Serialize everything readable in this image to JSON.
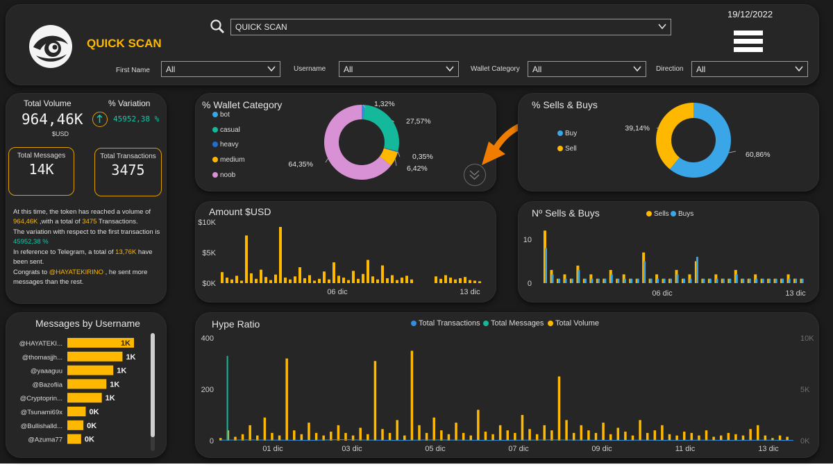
{
  "colors": {
    "accent": "#ffb800",
    "teal": "#14b89a",
    "blue": "#2f8fe0",
    "pink": "#d891d4",
    "orange_arrow": "#f07d00",
    "bg": "#1b1b1b",
    "panel": "#262626"
  },
  "header": {
    "app_title": "QUICK SCAN",
    "logo_icon": "eye-swirl-logo",
    "search_value": "QUICK SCAN",
    "date": "19/12/2022",
    "menu_icon": "hamburger-icon",
    "filters": [
      {
        "label": "First Name",
        "value": "All"
      },
      {
        "label": "Username",
        "value": "All"
      },
      {
        "label": "Wallet Category",
        "value": "All"
      },
      {
        "label": "Direction",
        "value": "All"
      }
    ]
  },
  "kpis": {
    "total_volume_label": "Total Volume",
    "total_volume_value": "964,46K",
    "total_volume_unit": "$USD",
    "variation_label": "% Variation",
    "variation_value": "45952,38 %",
    "total_messages_label": "Total Messages",
    "total_messages_value": "14K",
    "total_transactions_label": "Total Transactions",
    "total_transactions_value": "3475"
  },
  "summary": {
    "p1_a": "At this time, the token has reached a volume of ",
    "p1_b": "964,46K",
    "p1_c": " ,with a total of ",
    "p1_d": "3475",
    "p1_e": " Transactions.",
    "p2_a": "The variation with respect to the first transaction is ",
    "p2_b": "45952,38 %",
    "p3_a": "In reference to Telegram, a total of ",
    "p3_b": "13,76K",
    "p3_c": " have been sent.",
    "p4_a": "Congrats to ",
    "p4_b": "@HAYATEKIRINO",
    "p4_c": " , he sent more messages than the rest."
  },
  "chart_data": [
    {
      "id": "wallet_category",
      "type": "pie",
      "title": "% Wallet Category",
      "legend_position": "left",
      "labels": [
        "bot",
        "casual",
        "heavy",
        "medium",
        "noob"
      ],
      "values": [
        1.32,
        27.57,
        0.35,
        6.42,
        64.35
      ],
      "value_labels": [
        "1,32%",
        "27,57%",
        "0,35%",
        "6,42%",
        "64,35%"
      ],
      "colors": [
        "#2f8fe0",
        "#14b89a",
        "#1f6fd0",
        "#ffb800",
        "#d891d4"
      ]
    },
    {
      "id": "sells_buys_pct",
      "type": "pie",
      "title": "% Sells & Buys",
      "legend_position": "left",
      "labels": [
        "Buy",
        "Sell"
      ],
      "values": [
        60.86,
        39.14
      ],
      "value_labels": [
        "60,86%",
        "39,14%"
      ],
      "colors": [
        "#3aa6e8",
        "#ffb800"
      ]
    },
    {
      "id": "amount_usd",
      "type": "area",
      "title": "Amount $USD",
      "y_ticks": [
        "$10K",
        "$5K",
        "$0K"
      ],
      "ylim": [
        0,
        10000
      ],
      "x_ticks": [
        "06 dic",
        "13 dic"
      ],
      "series": [
        {
          "values": [
            1800,
            900,
            600,
            1200,
            400,
            7800,
            1600,
            700,
            2200,
            1000,
            500,
            1400,
            9200,
            900,
            600,
            1100,
            2600,
            800,
            1300,
            400,
            700,
            1900,
            600,
            3400,
            1200,
            900,
            500,
            2000,
            700,
            1500,
            3800,
            1100,
            600,
            2900,
            800,
            1300,
            500,
            900,
            1200,
            600,
            0,
            0,
            0,
            0,
            1100,
            700,
            1300,
            900,
            600,
            800,
            1000,
            500,
            400,
            300
          ]
        }
      ]
    },
    {
      "id": "sells_buys_count",
      "type": "area",
      "title": "Nº Sells & Buys",
      "legend_position": "top",
      "y_ticks": [
        "10",
        "0"
      ],
      "ylim": [
        0,
        13
      ],
      "x_ticks": [
        "06 dic",
        "13 dic"
      ],
      "series": [
        {
          "name": "Sells",
          "values": [
            12,
            3,
            1,
            2,
            1,
            4,
            1,
            2,
            1,
            1,
            3,
            1,
            2,
            1,
            1,
            7,
            1,
            2,
            1,
            1,
            3,
            1,
            2,
            5,
            1,
            1,
            2,
            1,
            1,
            3,
            1,
            1,
            2,
            1,
            1,
            1,
            1,
            2,
            1,
            1
          ]
        },
        {
          "name": "Buys",
          "values": [
            8,
            2,
            1,
            1,
            1,
            3,
            1,
            1,
            1,
            1,
            2,
            1,
            1,
            1,
            1,
            5,
            1,
            1,
            1,
            1,
            2,
            1,
            1,
            6,
            1,
            1,
            1,
            1,
            1,
            2,
            1,
            1,
            1,
            1,
            1,
            1,
            1,
            1,
            1,
            1
          ]
        }
      ]
    },
    {
      "id": "messages_by_username",
      "type": "bar",
      "title": "Messages by Username",
      "categories": [
        "@HAYATEKI...",
        "@thomasjjh...",
        "@yaaaguu",
        "@Bazofiia",
        "@Cryptoprin...",
        "@Tsunami69x",
        "@Bullishalld...",
        "@Azuma77"
      ],
      "values": [
        1450,
        1200,
        1000,
        850,
        750,
        400,
        350,
        300
      ],
      "value_labels": [
        "1K",
        "1K",
        "1K",
        "1K",
        "1K",
        "0K",
        "0K",
        "0K"
      ]
    },
    {
      "id": "hype_ratio",
      "type": "line",
      "title": "Hype Ratio",
      "legend_position": "top",
      "y_ticks": [
        "400",
        "200",
        "0"
      ],
      "ylim": [
        0,
        400
      ],
      "y2_ticks": [
        "10K",
        "5K",
        "0K"
      ],
      "y2lim": [
        0,
        10000
      ],
      "x_ticks": [
        "01 dic",
        "03 dic",
        "05 dic",
        "07 dic",
        "09 dic",
        "11 dic",
        "13 dic"
      ],
      "series": [
        {
          "name": "Total Transactions",
          "values": [
            2,
            3,
            2,
            1,
            4,
            2,
            1,
            3,
            2,
            1,
            2,
            3,
            2,
            1,
            2,
            1,
            2,
            1,
            2,
            1
          ]
        },
        {
          "name": "Total Messages",
          "values": [
            0,
            330,
            0,
            0,
            0,
            0,
            0,
            0,
            0,
            0,
            0,
            0,
            0,
            0,
            0,
            0,
            0,
            0,
            0,
            0
          ]
        },
        {
          "name": "Total Volume",
          "values": [
            10,
            40,
            15,
            25,
            60,
            20,
            90,
            30,
            20,
            320,
            40,
            25,
            70,
            30,
            20,
            35,
            60,
            30,
            20,
            50,
            25,
            310,
            45,
            30,
            80,
            20,
            350,
            60,
            30,
            90,
            40,
            25,
            70,
            30,
            20,
            120,
            35,
            25,
            60,
            40,
            30,
            100,
            45,
            25,
            60,
            40,
            250,
            80,
            30,
            60,
            40,
            30,
            70,
            25,
            50,
            35,
            20,
            80,
            30,
            40,
            60,
            25,
            20,
            35,
            30,
            20,
            40,
            15,
            20,
            30,
            25,
            20,
            45,
            60,
            20,
            10,
            20,
            15
          ]
        }
      ]
    }
  ]
}
